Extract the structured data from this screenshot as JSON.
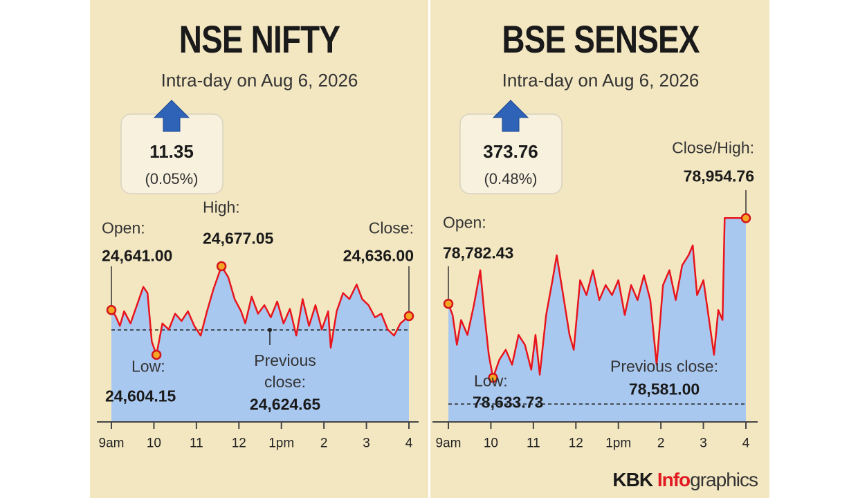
{
  "chart_data": [
    {
      "type": "line",
      "title": "NSE NIFTY",
      "subtitle": "Intra-day on Aug 6, 2026",
      "change": 11.35,
      "change_pct": {
        "value": 0.05,
        "label": "(0.05%)"
      },
      "x": [
        9,
        9.1,
        9.2,
        9.3,
        9.45,
        9.6,
        9.75,
        9.85,
        9.95,
        10.06,
        10.2,
        10.35,
        10.5,
        10.65,
        10.8,
        10.95,
        11.1,
        11.25,
        11.4,
        11.59,
        11.75,
        11.9,
        12.05,
        12.15,
        12.3,
        12.45,
        12.6,
        12.75,
        12.9,
        13.05,
        13.2,
        13.35,
        13.5,
        13.65,
        13.8,
        13.95,
        14.1,
        14.16,
        14.3,
        14.45,
        14.6,
        14.77,
        14.9,
        15.05,
        15.2,
        15.35,
        15.5,
        15.65,
        15.8,
        16
      ],
      "values": [
        24641,
        24636,
        24628,
        24640,
        24630,
        24645,
        24660,
        24655,
        24615,
        24604.15,
        24630,
        24625,
        24638,
        24632,
        24640,
        24628,
        24620,
        24640,
        24658,
        24677.05,
        24668,
        24650,
        24640,
        24630,
        24652,
        24638,
        24645,
        24635,
        24648,
        24630,
        24642,
        24620,
        24650,
        24628,
        24645,
        24625,
        24640,
        24610,
        24640,
        24655,
        24650,
        24662,
        24650,
        24645,
        24635,
        24638,
        24625,
        24620,
        24630,
        24636
      ],
      "color": "#e8141c",
      "fill_color": "#a9c8f0",
      "xlim": [
        9,
        16
      ],
      "ylim": [
        24549,
        24731
      ],
      "xticks": [
        {
          "value": 9,
          "label": "9am"
        },
        10,
        11,
        12,
        {
          "value": 13,
          "label": "1pm"
        },
        {
          "value": 14,
          "label": "2"
        },
        {
          "value": 15,
          "label": "3"
        },
        {
          "value": 16,
          "label": "4"
        }
      ],
      "markers": {
        "labels": [
          "Open:",
          "High:",
          "Low:",
          "Close:"
        ],
        "x": [
          9,
          11.59,
          10.06,
          16
        ],
        "values": [
          24641,
          24677.05,
          24604.15,
          24636
        ],
        "value_labels": [
          "24,641.00",
          "24,677.05",
          "24,604.15",
          "24,636.00"
        ]
      },
      "reference": {
        "label": "Previous close:",
        "value": 24624.65,
        "value_label": "24,624.65"
      }
    },
    {
      "type": "line",
      "title": "BSE SENSEX",
      "subtitle": "Intra-day on Aug 6, 2026",
      "change": 373.76,
      "change_pct": {
        "value": 0.48,
        "label": "(0.48%)"
      },
      "x": [
        9,
        9.1,
        9.2,
        9.3,
        9.45,
        9.6,
        9.75,
        9.85,
        9.95,
        10.05,
        10.2,
        10.35,
        10.5,
        10.65,
        10.8,
        10.95,
        11.05,
        11.15,
        11.3,
        11.45,
        11.55,
        11.7,
        11.85,
        11.95,
        12.1,
        12.25,
        12.4,
        12.55,
        12.7,
        12.85,
        13,
        13.15,
        13.3,
        13.45,
        13.6,
        13.75,
        13.9,
        14.05,
        14.2,
        14.35,
        14.5,
        14.65,
        14.75,
        14.85,
        15,
        15.15,
        15.25,
        15.35,
        15.45,
        15.5,
        15.75,
        16
      ],
      "values": [
        78782.43,
        78760,
        78700,
        78750,
        78720,
        78780,
        78850,
        78760,
        78680,
        78633.73,
        78670,
        78690,
        78660,
        78720,
        78700,
        78650,
        78720,
        78640,
        78760,
        78830,
        78880,
        78800,
        78720,
        78690,
        78830,
        78800,
        78850,
        78790,
        78820,
        78800,
        78830,
        78760,
        78820,
        78790,
        78840,
        78790,
        78660,
        78820,
        78850,
        78790,
        78860,
        78880,
        78900,
        78800,
        78830,
        78740,
        78680,
        78770,
        78750,
        78954.76,
        78954.76,
        78954.76
      ],
      "color": "#e8141c",
      "fill_color": "#a9c8f0",
      "xlim": [
        9,
        16
      ],
      "ylim": [
        78545,
        78990
      ],
      "xticks": [
        {
          "value": 9,
          "label": "9am"
        },
        10,
        11,
        12,
        {
          "value": 13,
          "label": "1pm"
        },
        {
          "value": 14,
          "label": "2"
        },
        {
          "value": 15,
          "label": "3"
        },
        {
          "value": 16,
          "label": "4"
        }
      ],
      "markers": {
        "labels": [
          "Open:",
          "Low:",
          "Close/High:"
        ],
        "x": [
          9,
          10.05,
          16
        ],
        "values": [
          78782.43,
          78633.73,
          78954.76
        ],
        "value_labels": [
          "78,782.43",
          "78,633.73",
          "78,954.76"
        ]
      },
      "reference": {
        "label": "Previous close:",
        "value": 78581,
        "value_label": "78,581.00"
      }
    }
  ],
  "credit": {
    "brand": "KBK",
    "part1": "Info",
    "part2": "graphics"
  }
}
